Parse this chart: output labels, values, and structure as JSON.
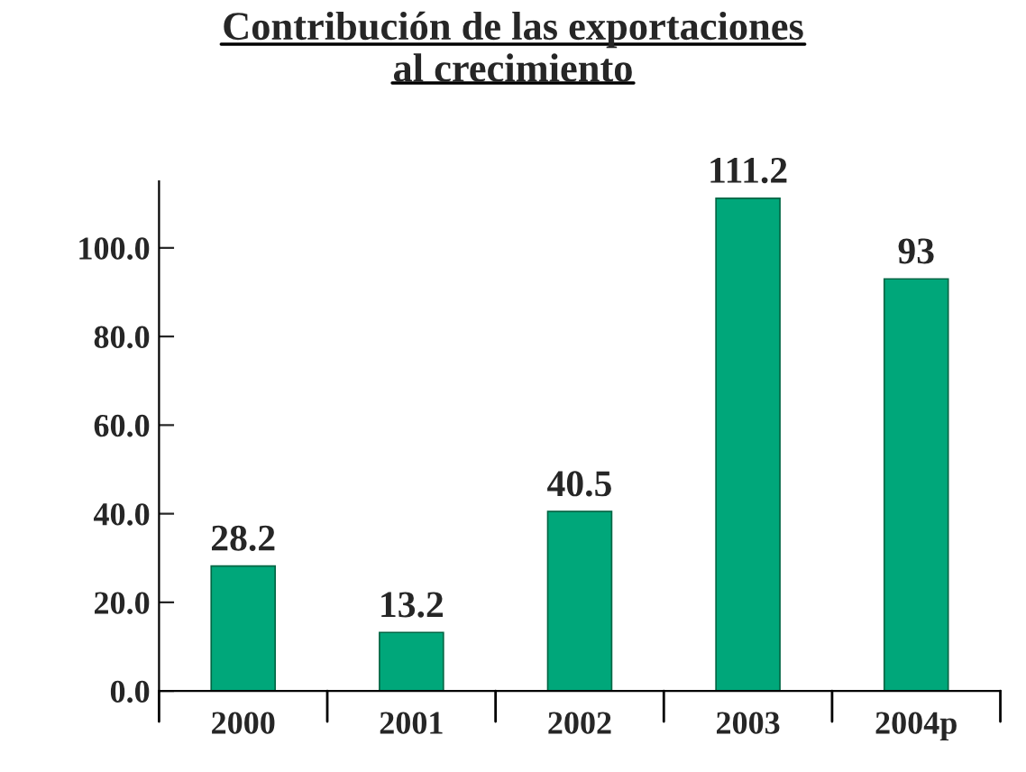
{
  "chart_data": {
    "type": "bar",
    "title": "Contribución de las exportaciones\nal crecimiento",
    "categories": [
      "2000",
      "2001",
      "2002",
      "2003",
      "2004p"
    ],
    "values": [
      28.2,
      13.2,
      40.5,
      111.2,
      93
    ],
    "color": "#00a77a",
    "ylim": [
      0,
      115
    ],
    "yticks": [
      {
        "value": 0,
        "label": "0.0"
      },
      {
        "value": 20,
        "label": "20.0"
      },
      {
        "value": 40,
        "label": "40.0"
      },
      {
        "value": 60,
        "label": "60.0"
      },
      {
        "value": 80,
        "label": "80.0"
      },
      {
        "value": 100,
        "label": "100.0"
      }
    ],
    "data_labels": true,
    "grid": false,
    "legend": false
  }
}
